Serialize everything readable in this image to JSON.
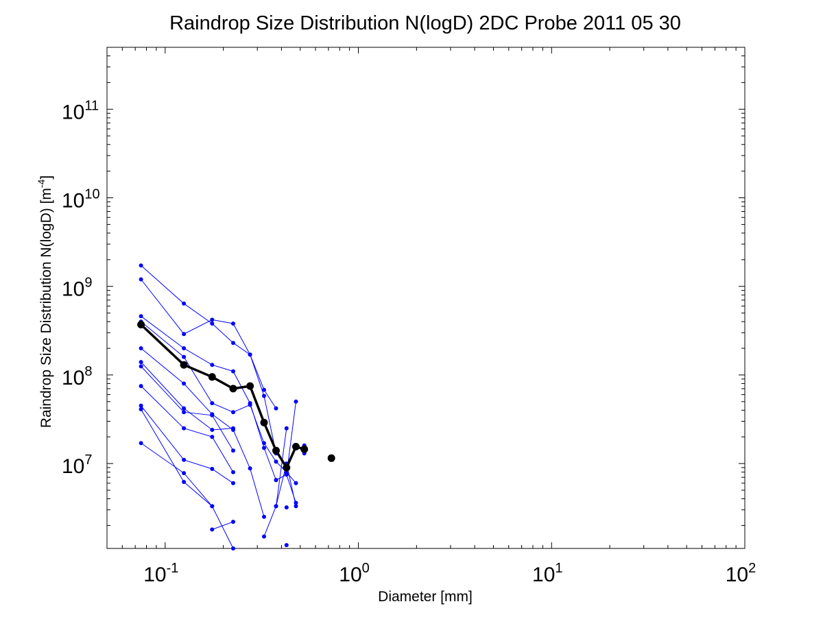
{
  "chart_data": {
    "type": "line",
    "title": "Raindrop Size Distribution N(logD) 2DC Probe 2011 05 30",
    "xlabel": "Diameter [mm]",
    "ylabel": "Raindrop Size Distribution N(logD) [m",
    "ylabel_sup": "-4",
    "ylabel_end": "]",
    "x_scale": "log",
    "y_scale": "log",
    "xlim": [
      0.05,
      100
    ],
    "ylim": [
      1100000,
      500000000000
    ],
    "x_ticks": [
      {
        "base": "10",
        "exp": "-1",
        "value": 0.1
      },
      {
        "base": "10",
        "exp": "0",
        "value": 1
      },
      {
        "base": "10",
        "exp": "1",
        "value": 10
      },
      {
        "base": "10",
        "exp": "2",
        "value": 100
      }
    ],
    "y_ticks": [
      {
        "base": "10",
        "exp": "7",
        "value": 10000000
      },
      {
        "base": "10",
        "exp": "8",
        "value": 100000000
      },
      {
        "base": "10",
        "exp": "9",
        "value": 1000000000
      },
      {
        "base": "10",
        "exp": "10",
        "value": 10000000000
      },
      {
        "base": "10",
        "exp": "11",
        "value": 100000000000
      }
    ],
    "grid": false,
    "series_color": "#0000ff",
    "mean_color": "#000000",
    "series": [
      {
        "x": [
          0.075,
          0.125,
          0.175,
          0.225,
          0.275,
          0.325,
          0.375
        ],
        "y": [
          1720000000,
          640000000,
          380000000,
          230000000,
          170000000,
          68000000,
          42000000
        ]
      },
      {
        "x": [
          0.075,
          0.125,
          0.175,
          0.225,
          0.275,
          0.325,
          0.375
        ],
        "y": [
          1200000000,
          290000000,
          420000000,
          380000000,
          170000000,
          58000000,
          13000000
        ]
      },
      {
        "x": [
          0.075,
          0.125,
          0.175,
          0.225,
          0.275,
          0.325,
          0.375,
          0.425,
          0.475
        ],
        "y": [
          460000000,
          200000000,
          130000000,
          110000000,
          48000000,
          15000000,
          6500000,
          7500000,
          50000000
        ]
      },
      {
        "x": [
          0.075,
          0.125,
          0.175,
          0.225,
          0.275,
          0.325,
          0.375,
          0.425
        ],
        "y": [
          400000000,
          160000000,
          48000000,
          38000000,
          46000000,
          17000000,
          10500000,
          8000000
        ]
      },
      {
        "x": [
          0.075,
          0.125,
          0.175,
          0.225,
          0.275,
          0.325
        ],
        "y": [
          200000000,
          80000000,
          36000000,
          24000000,
          8800000,
          2500000
        ]
      },
      {
        "x": [
          0.075,
          0.125,
          0.175,
          0.225
        ],
        "y": [
          140000000,
          42000000,
          24000000,
          25000000
        ]
      },
      {
        "x": [
          0.075,
          0.125,
          0.175,
          0.225
        ],
        "y": [
          125000000,
          38000000,
          35000000,
          14000000
        ]
      },
      {
        "x": [
          0.075,
          0.125,
          0.175,
          0.225
        ],
        "y": [
          75000000,
          25000000,
          20000000,
          8000000
        ]
      },
      {
        "x": [
          0.075,
          0.125,
          0.175,
          0.225
        ],
        "y": [
          45000000,
          11000000,
          8700000,
          6000000
        ]
      },
      {
        "x": [
          0.075,
          0.125,
          0.175
        ],
        "y": [
          41000000,
          6200000,
          3300000
        ]
      },
      {
        "x": [
          0.075,
          0.125,
          0.175,
          0.225
        ],
        "y": [
          17000000,
          7800000,
          3300000,
          1100000
        ]
      },
      {
        "x": [
          0.175,
          0.225
        ],
        "y": [
          1800000,
          2200000
        ]
      },
      {
        "x": [
          0.325,
          0.375,
          0.425
        ],
        "y": [
          1500000,
          3300000,
          25000000
        ]
      },
      {
        "x": [
          0.375,
          0.425,
          0.475
        ],
        "y": [
          3300000,
          10000000,
          3300000
        ]
      },
      {
        "x": [
          0.375,
          0.425,
          0.475
        ],
        "y": [
          6500000,
          7500000,
          3600000
        ]
      },
      {
        "x": [
          0.425,
          0.475
        ],
        "y": [
          8000000,
          6000000
        ]
      },
      {
        "x": [
          0.425
        ],
        "y": [
          3200000
        ]
      },
      {
        "x": [
          0.425
        ],
        "y": [
          1200000
        ]
      },
      {
        "x": [
          0.525,
          0.525
        ],
        "y": [
          16000000,
          13000000
        ]
      }
    ],
    "mean_series": {
      "x": [
        0.075,
        0.125,
        0.175,
        0.225,
        0.275,
        0.325,
        0.375,
        0.425,
        0.475,
        0.525
      ],
      "y": [
        370000000,
        130000000,
        95000000,
        70000000,
        75000000,
        29000000,
        14000000,
        9000000,
        15500000,
        14500000
      ]
    },
    "mean_extra_point": {
      "x": 0.725,
      "y": 11500000
    }
  }
}
